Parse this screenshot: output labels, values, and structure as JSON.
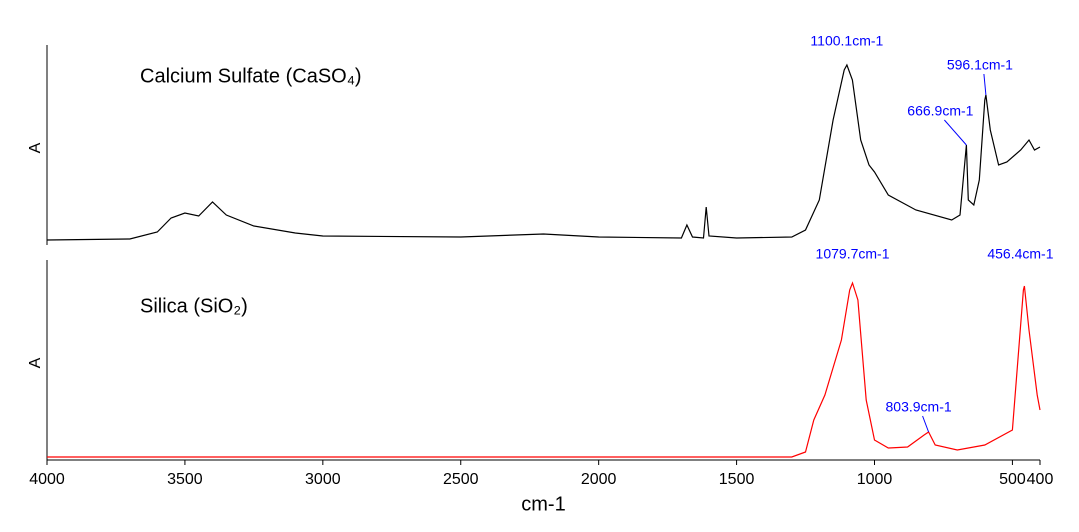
{
  "chart_data": [
    {
      "type": "line",
      "title": "Calcium Sulfate (CaSO₄)",
      "ylabel": "A",
      "color": "#000000",
      "xlim": [
        4000,
        400
      ],
      "ylim": [
        0,
        1
      ],
      "x": [
        4000,
        3700,
        3600,
        3550,
        3500,
        3450,
        3400,
        3350,
        3250,
        3100,
        3000,
        2500,
        2200,
        2000,
        1700,
        1680,
        1660,
        1620,
        1610,
        1600,
        1500,
        1300,
        1250,
        1200,
        1150,
        1110,
        1100.1,
        1080,
        1050,
        1020,
        1000,
        950,
        850,
        720,
        690,
        666.9,
        660,
        640,
        620,
        600,
        596.1,
        580,
        550,
        520,
        470,
        440,
        420,
        400
      ],
      "values": [
        0.025,
        0.03,
        0.065,
        0.135,
        0.16,
        0.145,
        0.215,
        0.15,
        0.095,
        0.06,
        0.045,
        0.04,
        0.055,
        0.04,
        0.035,
        0.1,
        0.04,
        0.035,
        0.19,
        0.045,
        0.035,
        0.04,
        0.075,
        0.225,
        0.625,
        0.875,
        0.9,
        0.825,
        0.525,
        0.4,
        0.365,
        0.25,
        0.175,
        0.125,
        0.15,
        0.5,
        0.225,
        0.2,
        0.325,
        0.725,
        0.75,
        0.575,
        0.4,
        0.415,
        0.475,
        0.525,
        0.475,
        0.49
      ],
      "annotations": [
        {
          "label": "1100.1cm-1",
          "x": 1100.1,
          "y": 0.9
        },
        {
          "label": "666.9cm-1",
          "x": 666.9,
          "y": 0.5
        },
        {
          "label": "596.1cm-1",
          "x": 596.1,
          "y": 0.75
        }
      ]
    },
    {
      "type": "line",
      "title": "Silica (SiO₂)",
      "ylabel": "A",
      "xlabel": "cm-1",
      "color": "#ff0000",
      "xlim": [
        4000,
        400
      ],
      "ylim": [
        0,
        1
      ],
      "xticks": [
        4000,
        3500,
        3000,
        2500,
        2000,
        1500,
        1000,
        500,
        400
      ],
      "x": [
        4000,
        1300,
        1250,
        1220,
        1180,
        1120,
        1090,
        1079.7,
        1060,
        1030,
        1000,
        950,
        880,
        820,
        803.9,
        780,
        700,
        600,
        500,
        480,
        460,
        456.4,
        440,
        410,
        400
      ],
      "values": [
        0.015,
        0.015,
        0.04,
        0.2,
        0.325,
        0.6,
        0.85,
        0.885,
        0.8,
        0.3,
        0.1,
        0.06,
        0.065,
        0.125,
        0.14,
        0.075,
        0.05,
        0.075,
        0.15,
        0.5,
        0.85,
        0.87,
        0.65,
        0.325,
        0.25
      ],
      "annotations": [
        {
          "label": "1079.7cm-1",
          "x": 1079.7,
          "y": 0.885
        },
        {
          "label": "803.9cm-1",
          "x": 803.9,
          "y": 0.14
        },
        {
          "label": "456.4cm-1",
          "x": 456.4,
          "y": 0.87
        }
      ]
    }
  ]
}
